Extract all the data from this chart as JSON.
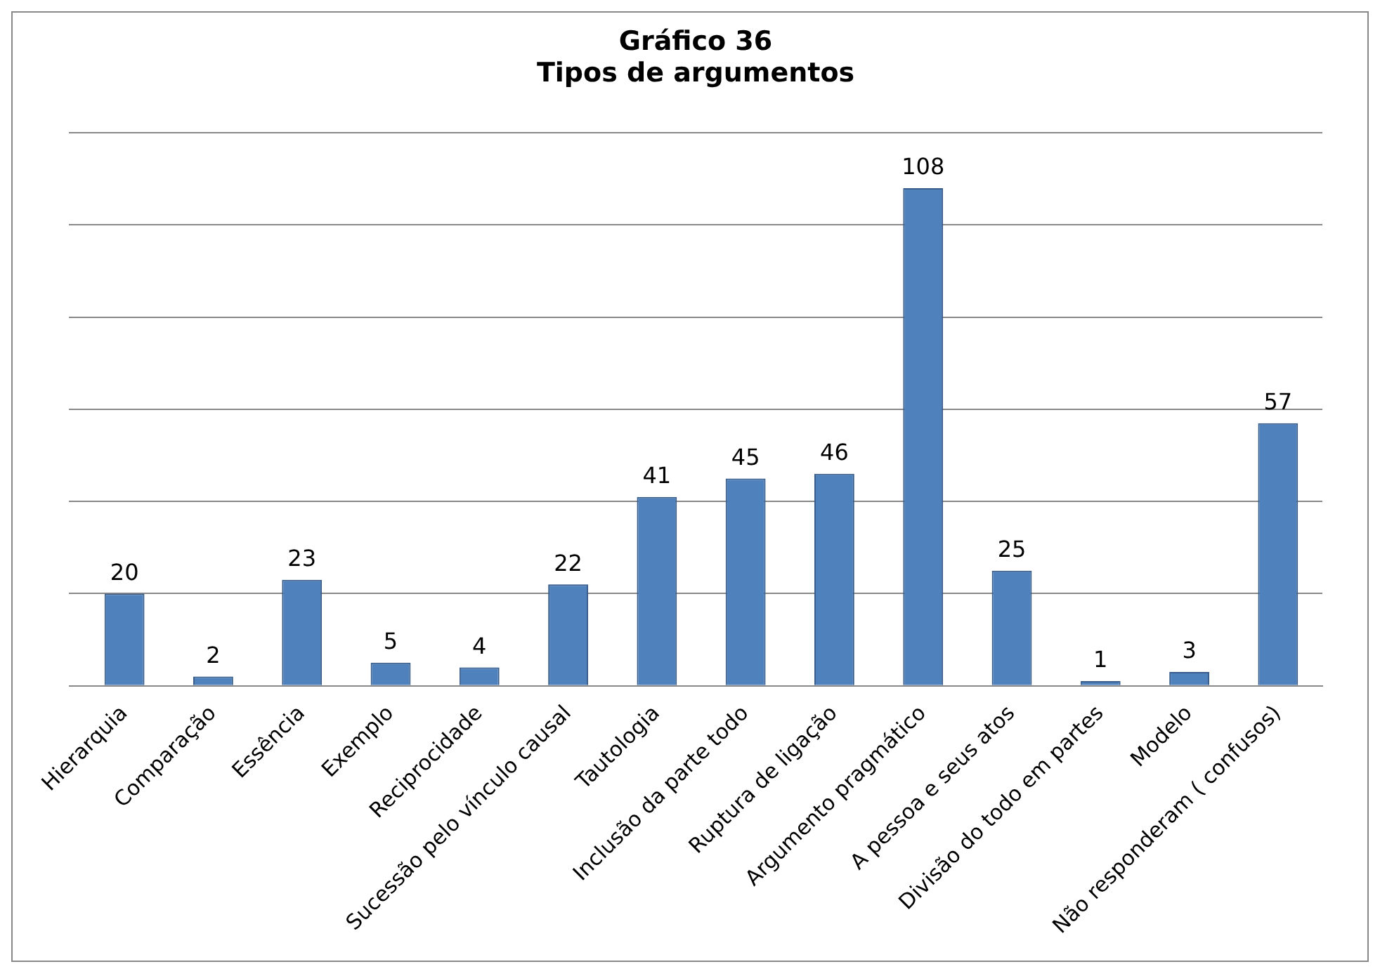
{
  "chart_data": {
    "type": "bar",
    "title": "Gráfico 36",
    "subtitle": "Tipos de argumentos",
    "categories": [
      "Hierarquia",
      "Comparação",
      "Essência",
      "Exemplo",
      "Reciprocidade",
      "Sucessão pelo vínculo causal",
      "Tautologia",
      "Inclusão da parte todo",
      "Ruptura de ligação",
      "Argumento pragmático",
      "A pessoa e seus atos",
      "Divisão do todo em partes",
      "Modelo",
      "Não responderam ( confusos)"
    ],
    "values": [
      20,
      2,
      23,
      5,
      4,
      22,
      41,
      45,
      46,
      108,
      25,
      1,
      3,
      57
    ],
    "color": "#4f81bd",
    "grid": "y",
    "data_labels": true,
    "legend": false,
    "tick_labels": "x"
  }
}
